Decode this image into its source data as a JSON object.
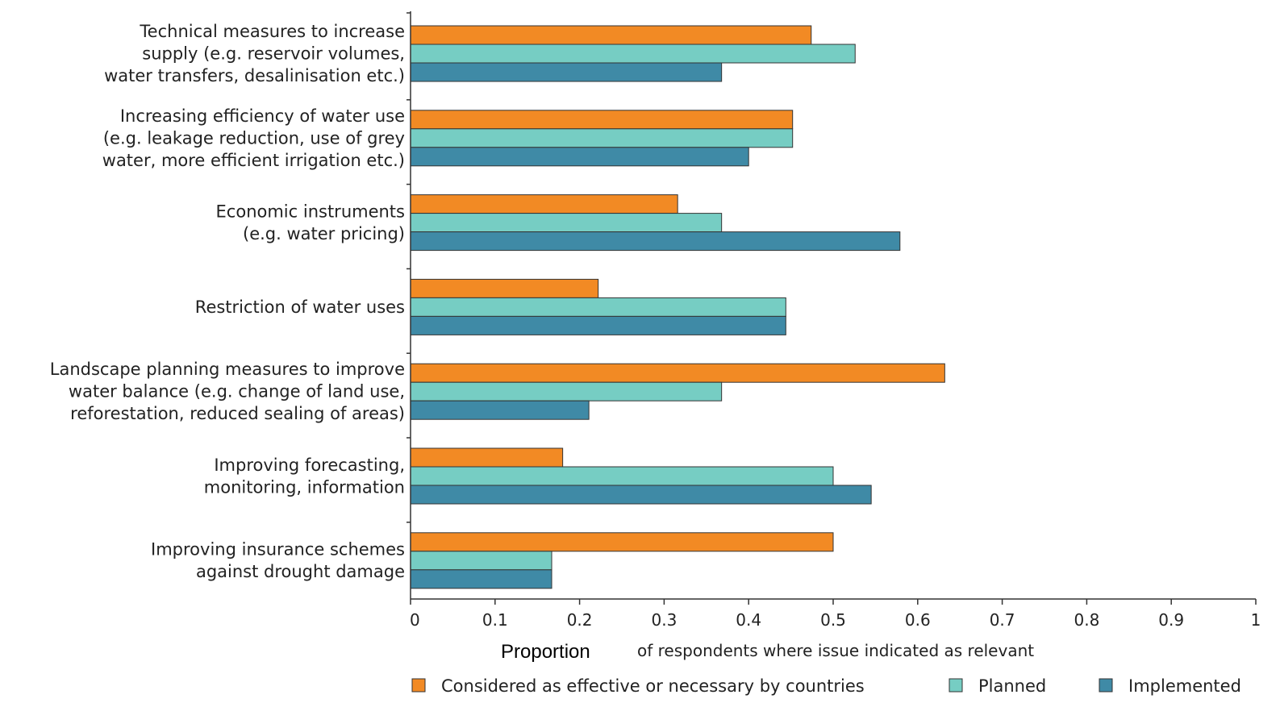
{
  "chart_data": {
    "type": "bar",
    "orientation": "horizontal",
    "categories": [
      [
        "Technical measures to increase",
        "supply (e.g. reservoir volumes,",
        "water transfers, desalinisation etc.)"
      ],
      [
        "Increasing efficiency of water use",
        "(e.g. leakage reduction, use of grey",
        "water, more efficient irrigation etc.)"
      ],
      [
        "Economic instruments",
        "(e.g. water pricing)"
      ],
      [
        "Restriction of water uses"
      ],
      [
        "Landscape planning measures to improve",
        "water balance (e.g. change of land use,",
        "reforestation, reduced sealing of areas)"
      ],
      [
        "Improving forecasting,",
        "monitoring, information"
      ],
      [
        "Improving insurance schemes",
        "against drought damage"
      ]
    ],
    "series": [
      {
        "name": "Considered as effective or necessary by countries",
        "color": "#f28a24",
        "values": [
          0.474,
          0.452,
          0.316,
          0.222,
          0.632,
          0.18,
          0.5
        ]
      },
      {
        "name": "Planned",
        "color": "#76cdc3",
        "values": [
          0.526,
          0.452,
          0.368,
          0.444,
          0.368,
          0.5,
          0.167
        ]
      },
      {
        "name": "Implemented",
        "color": "#3f8aa6",
        "values": [
          0.368,
          0.4,
          0.579,
          0.444,
          0.211,
          0.545,
          0.167
        ]
      }
    ],
    "xlim": [
      0,
      1
    ],
    "xticks": [
      "0",
      "0.1",
      "0.2",
      "0.3",
      "0.4",
      "0.5",
      "0.6",
      "0.7",
      "0.8",
      "0.9",
      "1"
    ],
    "xlabel_main": "Proportion",
    "xlabel_rest": "of respondents where issue indicated as relevant",
    "legend_position": "bottom",
    "grid": false
  }
}
